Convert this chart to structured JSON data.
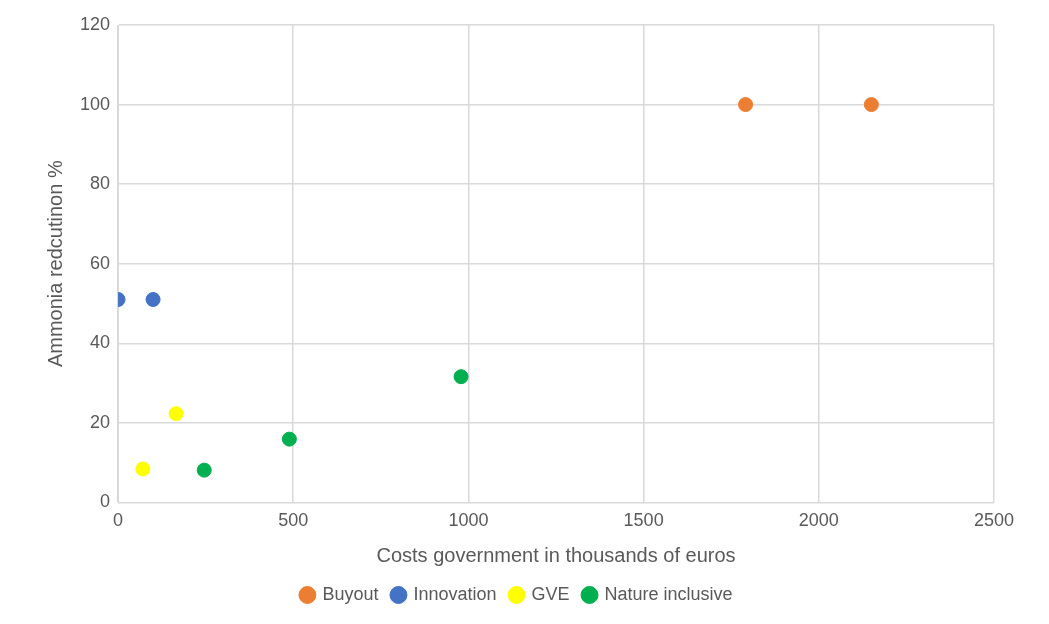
{
  "chart_data": {
    "type": "scatter",
    "xlabel": "Costs government in thousands of euros",
    "ylabel": "Ammonia redcutinon %",
    "xlim": [
      0,
      2500
    ],
    "xticks": [
      0,
      500,
      1000,
      1500,
      2000,
      2500
    ],
    "ylim": [
      0,
      120
    ],
    "yticks": [
      0,
      20,
      40,
      60,
      80,
      100,
      120
    ],
    "grid": true,
    "legend": "bottom",
    "marker": "circle",
    "series": [
      {
        "name": "Buyout",
        "color": "#ed7d31",
        "x": [
          1791,
          2150
        ],
        "values": [
          100,
          100
        ]
      },
      {
        "name": "Innovation",
        "color": "#4472c4",
        "x": [
          0,
          100
        ],
        "values": [
          51,
          51
        ]
      },
      {
        "name": "GVE",
        "color": "#ffff00",
        "x": [
          71,
          166
        ],
        "values": [
          8.4,
          22.3
        ]
      },
      {
        "name": "Nature inclusive",
        "color": "#00b050",
        "x": [
          246,
          489,
          979
        ],
        "values": [
          8.1,
          15.9,
          31.6
        ]
      }
    ]
  }
}
